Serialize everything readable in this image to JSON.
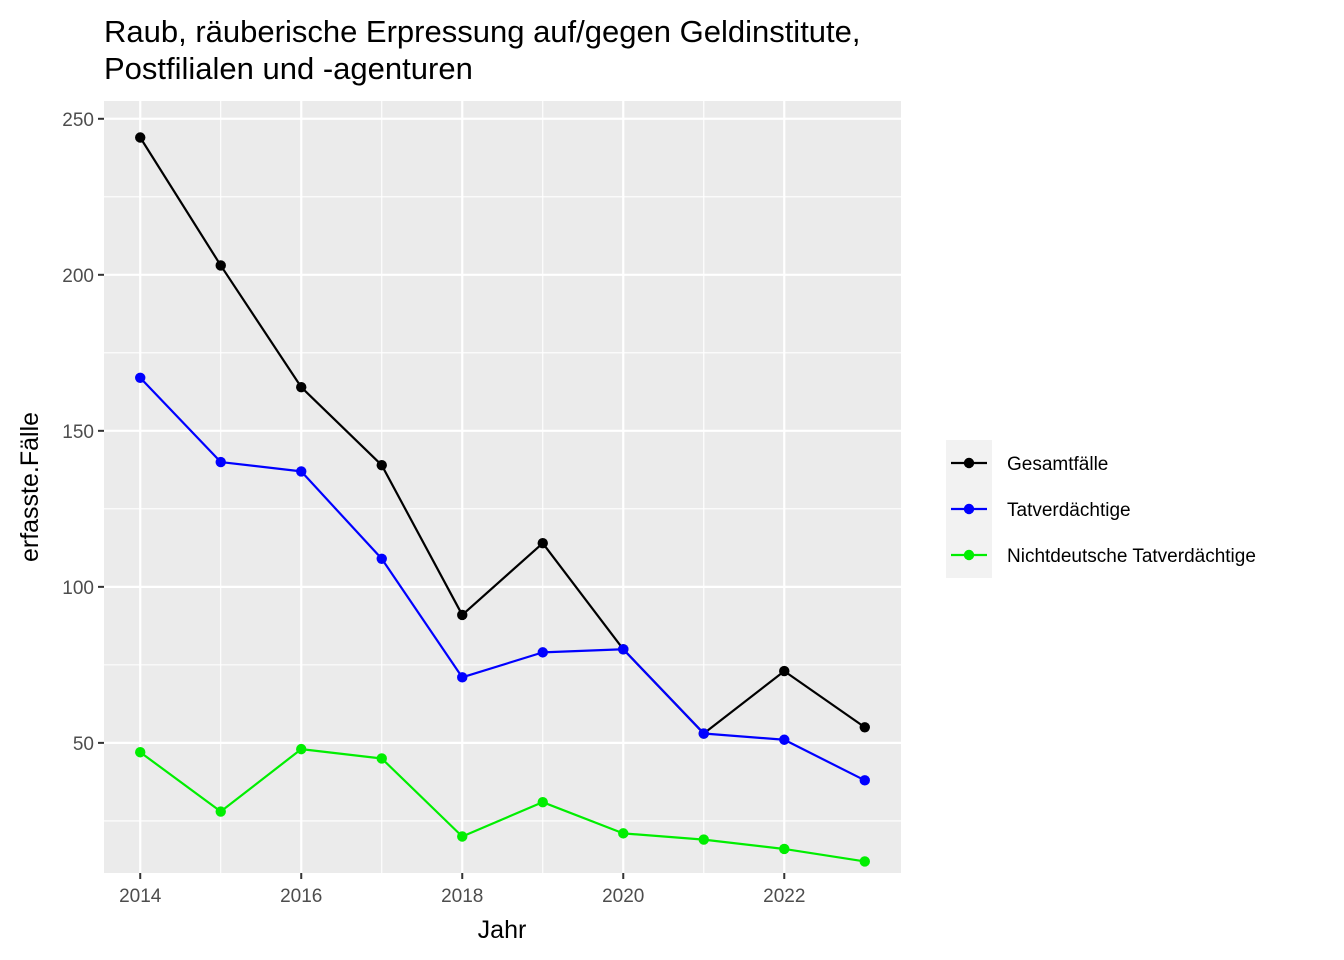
{
  "chart_data": {
    "type": "line",
    "title": "Raub, räuberische Erpressung auf/gegen Geldinstitute,",
    "subtitle": "Postfilialen und -agenturen",
    "xlabel": "Jahr",
    "ylabel": "erfasste.Fälle",
    "x": [
      2014,
      2015,
      2016,
      2017,
      2018,
      2019,
      2020,
      2021,
      2022,
      2023
    ],
    "xlim": [
      2013.55,
      2023.45
    ],
    "ylim": [
      8.3,
      255.7
    ],
    "x_ticks": [
      2014,
      2016,
      2018,
      2020,
      2022
    ],
    "y_ticks": [
      50,
      100,
      150,
      200,
      250
    ],
    "grid": true,
    "legend_position": "right",
    "series": [
      {
        "name": "Gesamtfälle",
        "color": "#000000",
        "values": [
          244,
          203,
          164,
          139,
          91,
          114,
          80,
          53,
          73,
          55
        ]
      },
      {
        "name": "Tatverdächtige",
        "color": "#0000ff",
        "values": [
          167,
          140,
          137,
          109,
          71,
          79,
          80,
          53,
          51,
          38
        ]
      },
      {
        "name": "Nichtdeutsche Tatverdächtige",
        "color": "#00ee00",
        "values": [
          47,
          28,
          48,
          45,
          20,
          31,
          21,
          19,
          16,
          12
        ]
      }
    ]
  }
}
